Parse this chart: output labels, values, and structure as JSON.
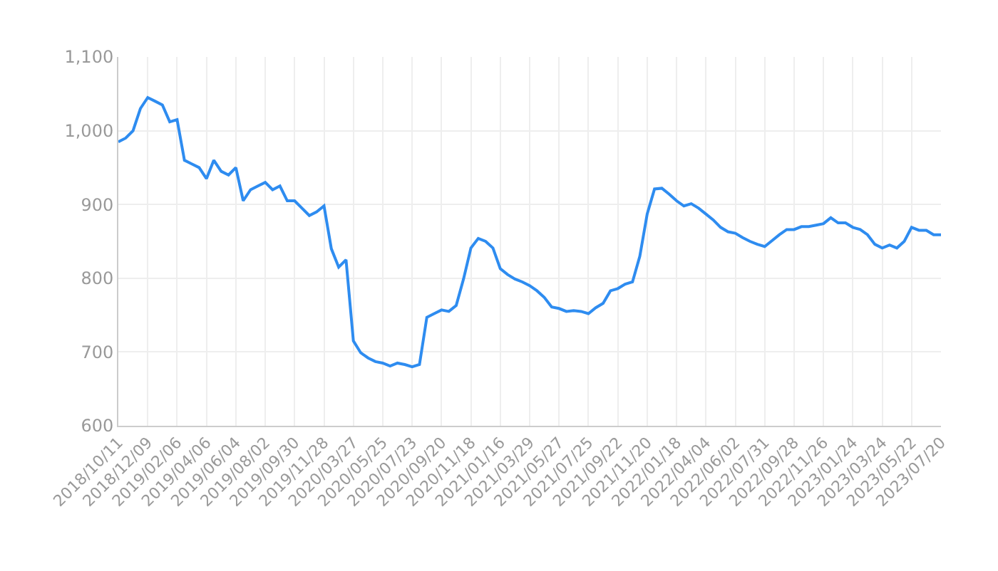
{
  "chart_data": {
    "type": "line",
    "categories": [
      "2018/10/11",
      null,
      null,
      null,
      "2018/12/09",
      null,
      null,
      null,
      "2019/02/06",
      null,
      null,
      null,
      "2019/04/06",
      null,
      null,
      null,
      "2019/06/04",
      null,
      null,
      null,
      "2019/08/02",
      null,
      null,
      null,
      "2019/09/30",
      null,
      null,
      null,
      "2019/11/28",
      null,
      null,
      null,
      "2020/03/27",
      null,
      null,
      null,
      "2020/05/25",
      null,
      null,
      null,
      "2020/07/23",
      null,
      null,
      null,
      "2020/09/20",
      null,
      null,
      null,
      "2020/11/18",
      null,
      null,
      null,
      "2021/01/16",
      null,
      null,
      null,
      "2021/03/29",
      null,
      null,
      null,
      "2021/05/27",
      null,
      null,
      null,
      "2021/07/25",
      null,
      null,
      null,
      "2021/09/22",
      null,
      null,
      null,
      "2021/11/20",
      null,
      null,
      null,
      "2022/01/18",
      null,
      null,
      null,
      "2022/04/04",
      null,
      null,
      null,
      "2022/06/02",
      null,
      null,
      null,
      "2022/07/31",
      null,
      null,
      null,
      "2022/09/28",
      null,
      null,
      null,
      "2022/11/26",
      null,
      null,
      null,
      "2023/01/24",
      null,
      null,
      null,
      "2023/03/24",
      null,
      null,
      null,
      "2023/05/22",
      null,
      null,
      null,
      "2023/07/20"
    ],
    "series": [
      {
        "color": "#2e8cf0",
        "values": [
          985,
          990,
          1000,
          1030,
          1045,
          1040,
          1035,
          1012,
          1015,
          960,
          955,
          950,
          935,
          960,
          945,
          940,
          950,
          905,
          920,
          925,
          930,
          920,
          925,
          905,
          905,
          895,
          885,
          890,
          898,
          840,
          815,
          825,
          715,
          699,
          692,
          687,
          685,
          681,
          685,
          683,
          680,
          683,
          747,
          752,
          757,
          755,
          763,
          799,
          841,
          854,
          850,
          841,
          813,
          805,
          799,
          795,
          790,
          783,
          774,
          761,
          759,
          755,
          756,
          755,
          752,
          760,
          766,
          783,
          786,
          792,
          795,
          830,
          887,
          921,
          922,
          914,
          905,
          898,
          901,
          895,
          887,
          879,
          869,
          863,
          861,
          855,
          850,
          846,
          843,
          851,
          859,
          866,
          866,
          870,
          870,
          872,
          874,
          882,
          875,
          875,
          869,
          866,
          859,
          846,
          841,
          845,
          841,
          850,
          869,
          865,
          865,
          859,
          859
        ]
      }
    ],
    "ylim": [
      600,
      1100
    ],
    "yticks": [
      600,
      700,
      800,
      900,
      {
        "value": 1000,
        "label": "1,000"
      },
      {
        "value": 1100,
        "label": "1,100"
      }
    ],
    "grid": true,
    "line_style": "solid"
  }
}
